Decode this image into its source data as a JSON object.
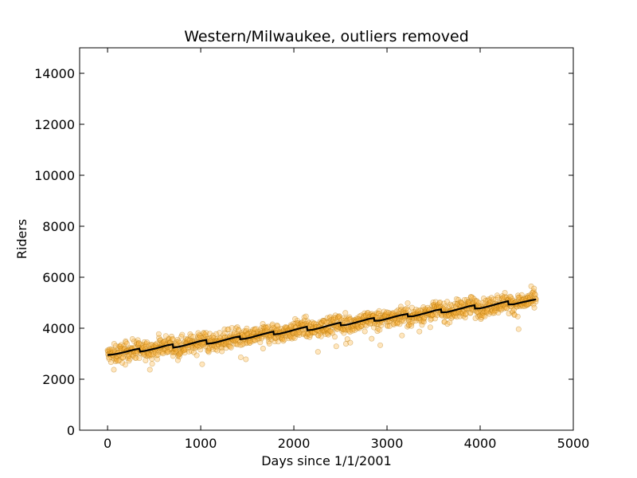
{
  "chart_data": {
    "type": "scatter",
    "title": "Western/Milwaukee, outliers removed",
    "xlabel": "Days since 1/1/2001",
    "ylabel": "Riders",
    "xlim": [
      -300,
      5000
    ],
    "ylim": [
      0,
      15000
    ],
    "xticks": [
      0,
      1000,
      2000,
      3000,
      4000,
      5000
    ],
    "yticks": [
      0,
      2000,
      4000,
      6000,
      8000,
      10000,
      12000,
      14000
    ],
    "grid": false,
    "legend": "none",
    "colors": {
      "points_fill": "#ffb845",
      "points_edge": "#b07000",
      "trend_line": "#000000",
      "axes": "#000000"
    },
    "series": [
      {
        "kind": "scatter",
        "x_range": [
          0,
          4600
        ],
        "approx_count": 1500,
        "description_values": "daily ridership points scattered about the trend, spread roughly +-400 riders with a few low outliers near 2300-2700"
      },
      {
        "kind": "line",
        "x": [
          0,
          60,
          120,
          180,
          240,
          300,
          340,
          350,
          400,
          460,
          520,
          580,
          640,
          700,
          705,
          760,
          820,
          880,
          940,
          1000,
          1060,
          1065,
          1120,
          1180,
          1240,
          1300,
          1360,
          1420,
          1425,
          1480,
          1540,
          1600,
          1660,
          1720,
          1780,
          1785,
          1840,
          1900,
          1960,
          2020,
          2080,
          2140,
          2145,
          2200,
          2260,
          2320,
          2380,
          2440,
          2500,
          2505,
          2560,
          2620,
          2680,
          2740,
          2800,
          2860,
          2865,
          2920,
          2980,
          3040,
          3100,
          3160,
          3220,
          3225,
          3280,
          3340,
          3400,
          3460,
          3520,
          3580,
          3585,
          3640,
          3700,
          3760,
          3820,
          3880,
          3940,
          3945,
          4000,
          4060,
          4120,
          4180,
          4240,
          4300,
          4305,
          4360,
          4420,
          4480,
          4540,
          4600
        ],
        "y": [
          2950,
          2970,
          3010,
          3060,
          3120,
          3170,
          3200,
          3080,
          3110,
          3160,
          3210,
          3270,
          3330,
          3370,
          3240,
          3270,
          3320,
          3380,
          3440,
          3500,
          3540,
          3390,
          3410,
          3460,
          3520,
          3580,
          3640,
          3680,
          3570,
          3590,
          3640,
          3700,
          3760,
          3820,
          3870,
          3760,
          3780,
          3830,
          3890,
          3950,
          4010,
          4060,
          3920,
          3940,
          3990,
          4050,
          4110,
          4170,
          4220,
          4110,
          4130,
          4180,
          4240,
          4300,
          4360,
          4400,
          4290,
          4300,
          4350,
          4410,
          4470,
          4520,
          4560,
          4460,
          4470,
          4520,
          4580,
          4640,
          4700,
          4740,
          4620,
          4630,
          4680,
          4740,
          4800,
          4860,
          4900,
          4770,
          4780,
          4830,
          4890,
          4950,
          5010,
          5060,
          4930,
          4940,
          4990,
          5040,
          5090,
          5130
        ]
      }
    ]
  }
}
